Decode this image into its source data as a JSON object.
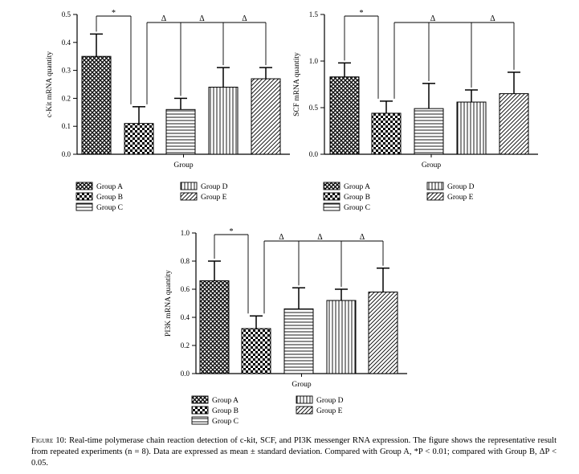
{
  "caption": {
    "label": "Figure 10:",
    "text": "Real-time polymerase chain reaction detection of c-kit, SCF, and PI3K messenger RNA expression. The figure shows the representative result from repeated experiments (n = 8). Data are expressed as mean ± standard deviation. Compared with Group A, *P < 0.01; compared with Group B, ΔP < 0.05."
  },
  "legend": {
    "items": [
      "Group A",
      "Group B",
      "Group C",
      "Group D",
      "Group E"
    ]
  },
  "chart_data": [
    {
      "type": "bar",
      "ylabel": "c-Kit mRNA quantity",
      "xlabel": "Group",
      "ylim": [
        0,
        0.5
      ],
      "yticks": [
        "0.0",
        "0.1",
        "0.2",
        "0.3",
        "0.4",
        "0.5"
      ],
      "categories": [
        "Group A",
        "Group B",
        "Group C",
        "Group D",
        "Group E"
      ],
      "values": [
        0.35,
        0.11,
        0.16,
        0.24,
        0.27
      ],
      "errors": [
        0.08,
        0.06,
        0.04,
        0.07,
        0.04
      ],
      "significance": {
        "ab_marker": "*",
        "b_vs_others_marker": "Δ",
        "b_vs_others_count": 3
      }
    },
    {
      "type": "bar",
      "ylabel": "SCF mRNA quantity",
      "xlabel": "Group",
      "ylim": [
        0,
        1.5
      ],
      "yticks": [
        "0.0",
        "0.5",
        "1.0",
        "1.5"
      ],
      "categories": [
        "Group A",
        "Group B",
        "Group C",
        "Group D",
        "Group E"
      ],
      "values": [
        0.83,
        0.44,
        0.49,
        0.56,
        0.65
      ],
      "errors": [
        0.15,
        0.13,
        0.27,
        0.13,
        0.23
      ],
      "significance": {
        "ab_marker": "*",
        "b_vs_others_marker": "Δ",
        "b_vs_others_count": 2
      }
    },
    {
      "type": "bar",
      "ylabel": "PI3K mRNA quantity",
      "xlabel": "Group",
      "ylim": [
        0,
        1.0
      ],
      "yticks": [
        "0.0",
        "0.2",
        "0.4",
        "0.6",
        "0.8",
        "1.0"
      ],
      "categories": [
        "Group A",
        "Group B",
        "Group C",
        "Group D",
        "Group E"
      ],
      "values": [
        0.66,
        0.32,
        0.46,
        0.52,
        0.58
      ],
      "errors": [
        0.14,
        0.09,
        0.15,
        0.08,
        0.17
      ],
      "significance": {
        "ab_marker": "*",
        "b_vs_others_marker": "Δ",
        "b_vs_others_count": 3
      }
    }
  ]
}
